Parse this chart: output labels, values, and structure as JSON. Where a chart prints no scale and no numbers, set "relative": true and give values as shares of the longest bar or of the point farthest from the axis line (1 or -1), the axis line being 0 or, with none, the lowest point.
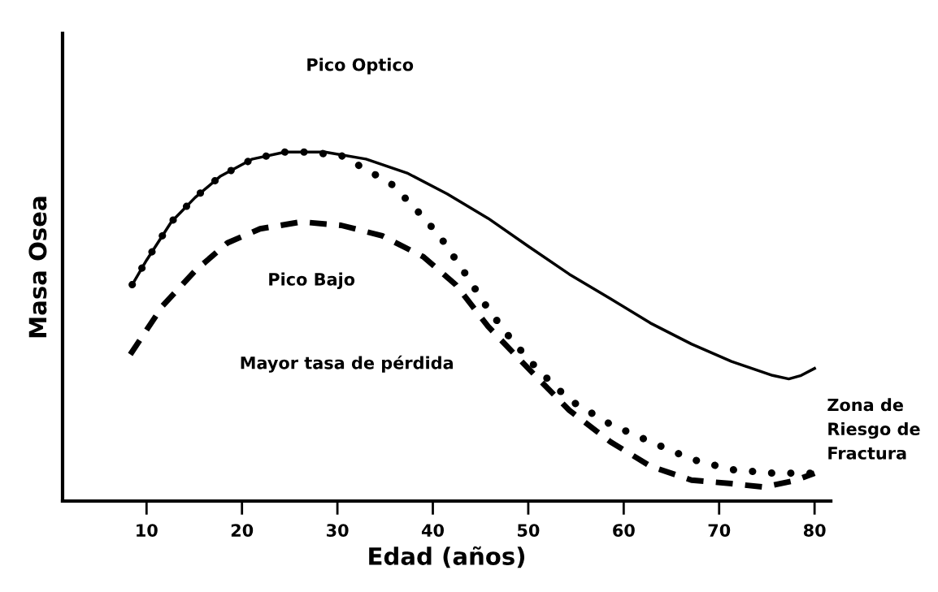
{
  "chart_data": {
    "type": "line",
    "relative": true,
    "xlabel": "Edad (años)",
    "ylabel": "Masa Osea",
    "xlim": [
      1.2,
      81.7
    ],
    "xticks": [
      10,
      20,
      30,
      40,
      50,
      60,
      70,
      80
    ],
    "grid": false,
    "legend": false,
    "tick_labels": "x",
    "annotations": [
      "Pico Optico",
      "Pico Bajo",
      "Mayor tasa de pérdida",
      "Zona de\nRiesgo de\nFractura"
    ],
    "series": [
      {
        "color": "#000000",
        "line_style": "solid",
        "x": [
          8.5,
          10,
          12.6,
          15.1,
          17.7,
          21.1,
          24.5,
          28.7,
          33.0,
          37.3,
          41.5,
          45.8,
          50.0,
          54.3,
          58.6,
          62.8,
          67.1,
          71.3,
          75.6,
          77.3,
          78.6,
          80.0
        ],
        "values": [
          0.62,
          0.69,
          0.8,
          0.87,
          0.93,
          0.98,
          1.0,
          1.0,
          0.98,
          0.94,
          0.88,
          0.81,
          0.73,
          0.65,
          0.58,
          0.51,
          0.45,
          0.4,
          0.36,
          0.35,
          0.36,
          0.38
        ]
      },
      {
        "color": "#000000",
        "line_style": "dotted",
        "x": [
          8.5,
          10,
          12.6,
          15.1,
          17.7,
          21.1,
          24.5,
          27.0,
          30.4,
          33.0,
          35.6,
          38.1,
          40.7,
          43.2,
          45.8,
          48.3,
          50.9,
          54.3,
          58.6,
          62.8,
          67.1,
          71.3,
          75.6,
          80.0
        ],
        "values": [
          0.62,
          0.69,
          0.8,
          0.87,
          0.93,
          0.98,
          1.0,
          1.0,
          0.99,
          0.95,
          0.91,
          0.84,
          0.76,
          0.66,
          0.55,
          0.46,
          0.38,
          0.29,
          0.22,
          0.17,
          0.12,
          0.09,
          0.08,
          0.08
        ]
      },
      {
        "color": "#000000",
        "line_style": "dashed",
        "x": [
          8.3,
          11.7,
          15.1,
          18.5,
          21.9,
          26.2,
          30.4,
          34.7,
          39.0,
          42.4,
          45.8,
          50.0,
          54.3,
          58.6,
          62.8,
          67.1,
          71.3,
          74.7,
          78.1,
          80.0
        ],
        "values": [
          0.42,
          0.56,
          0.66,
          0.74,
          0.78,
          0.8,
          0.79,
          0.76,
          0.7,
          0.62,
          0.5,
          0.38,
          0.26,
          0.17,
          0.1,
          0.06,
          0.05,
          0.04,
          0.06,
          0.08
        ]
      }
    ]
  }
}
